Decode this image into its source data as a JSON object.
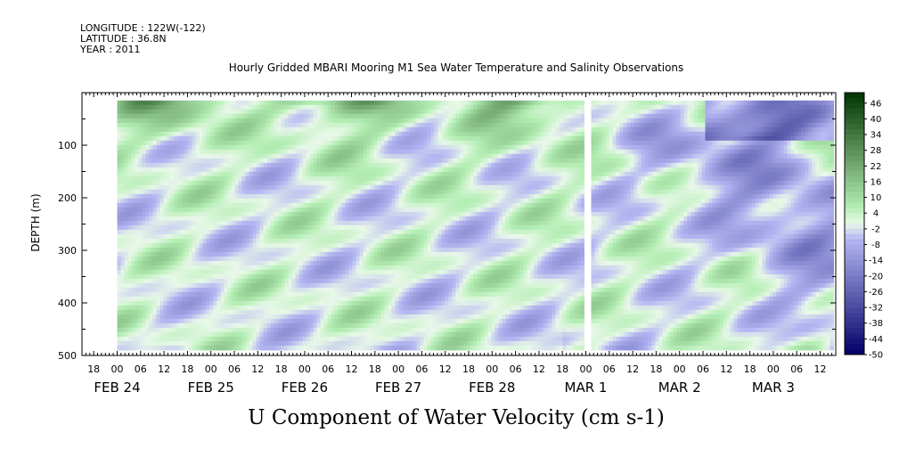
{
  "header": {
    "longitude": "LONGITUDE : 122W(-122)",
    "latitude": "LATITUDE : 36.8N",
    "year": "YEAR : 2011"
  },
  "chart_data": {
    "type": "heatmap",
    "title": "Hourly Gridded MBARI Mooring M1 Sea Water Temperature and Salinity Observations",
    "xlabel": "U Component of Water Velocity (cm s-1)",
    "ylabel": "DEPTH (m)",
    "ylim": [
      0,
      500
    ],
    "y_inverted": true,
    "y_ticks": [
      100,
      200,
      300,
      400,
      500
    ],
    "x_time_start": "2011-02-23T15:00",
    "x_time_end": "2011-03-03T16:00",
    "data_time_start": "2011-02-24T00:00",
    "data_time_end": "2011-03-03T15:00",
    "data_depth_range": [
      15,
      485
    ],
    "gap_time": "2011-02-29T00:00",
    "hour_labels": [
      "18",
      "00",
      "06",
      "12",
      "18",
      "00",
      "06",
      "12",
      "18",
      "00",
      "06",
      "12",
      "18",
      "00",
      "06",
      "12",
      "18",
      "00",
      "06",
      "12",
      "18",
      "00",
      "06",
      "12",
      "18",
      "00",
      "06",
      "12",
      "18",
      "00",
      "06",
      "12"
    ],
    "day_labels": [
      "FEB 24",
      "FEB 25",
      "FEB 26",
      "FEB 27",
      "FEB 28",
      "MAR  1",
      "MAR  2",
      "MAR  3"
    ],
    "colorbar": {
      "min": -50,
      "max": 50,
      "step": 2,
      "labels": [
        "46",
        "40",
        "34",
        "28",
        "22",
        "16",
        "10",
        "4",
        "-2",
        "-8",
        "-14",
        "-20",
        "-26",
        "-32",
        "-38",
        "-44",
        "-50"
      ]
    },
    "colors": {
      "negative_strong": "#000066",
      "negative_light": "#b4b6f2",
      "neutral": "#e8f8e8",
      "positive_light": "#b4eeb4",
      "positive_strong": "#003300"
    }
  }
}
